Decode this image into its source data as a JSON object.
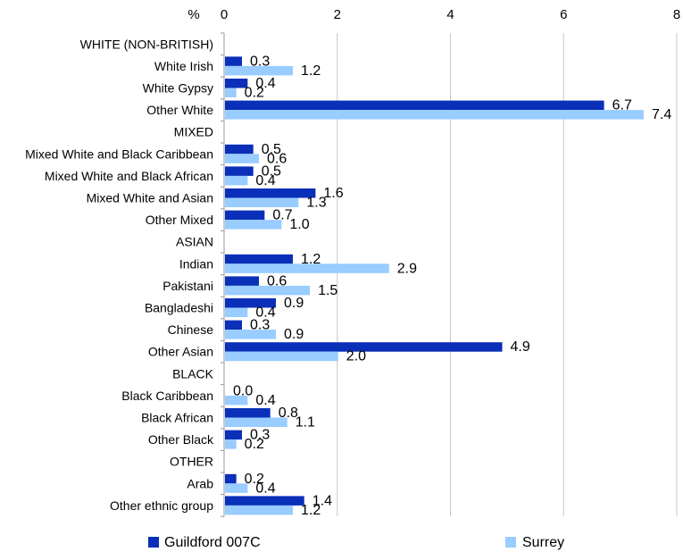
{
  "chart_data": {
    "type": "bar",
    "orientation": "horizontal",
    "unit": "%",
    "xlim": [
      0,
      8
    ],
    "xticks": [
      "0",
      "2",
      "4",
      "6",
      "8"
    ],
    "grid": "vertical",
    "legend_position": "bottom",
    "categories": [
      "WHITE (NON-BRITISH)",
      "White Irish",
      "White Gypsy",
      "Other White",
      "MIXED",
      "Mixed White and Black Caribbean",
      "Mixed White and Black African",
      "Mixed White and Asian",
      "Other Mixed",
      "ASIAN",
      "Indian",
      "Pakistani",
      "Bangladeshi",
      "Chinese",
      "Other Asian",
      "BLACK",
      "Black Caribbean",
      "Black African",
      "Other Black",
      "OTHER",
      "Arab",
      "Other ethnic group"
    ],
    "series": [
      {
        "name": "Guildford 007C",
        "color": "#0a2fb8",
        "values": [
          null,
          0.3,
          0.4,
          6.7,
          null,
          0.5,
          0.5,
          1.6,
          0.7,
          null,
          1.2,
          0.6,
          0.9,
          0.3,
          4.9,
          null,
          0.0,
          0.8,
          0.3,
          null,
          0.2,
          1.4
        ],
        "labels": [
          "",
          "0.3",
          "0.4",
          "6.7",
          "",
          "0.5",
          "0.5",
          "1.6",
          "0.7",
          "",
          "1.2",
          "0.6",
          "0.9",
          "0.3",
          "4.9",
          "",
          "0.0",
          "0.8",
          "0.3",
          "",
          "0.2",
          "1.4"
        ]
      },
      {
        "name": "Surrey",
        "color": "#99ccff",
        "values": [
          null,
          1.2,
          0.2,
          7.4,
          null,
          0.6,
          0.4,
          1.3,
          1.0,
          null,
          2.9,
          1.5,
          0.4,
          0.9,
          2.0,
          null,
          0.4,
          1.1,
          0.2,
          null,
          0.4,
          1.2
        ],
        "labels": [
          "",
          "1.2",
          "0.2",
          "7.4",
          "",
          "0.6",
          "0.4",
          "1.3",
          "1.0",
          "",
          "2.9",
          "1.5",
          "0.4",
          "0.9",
          "2.0",
          "",
          "0.4",
          "1.1",
          "0.2",
          "",
          "0.4",
          "1.2"
        ]
      }
    ]
  }
}
